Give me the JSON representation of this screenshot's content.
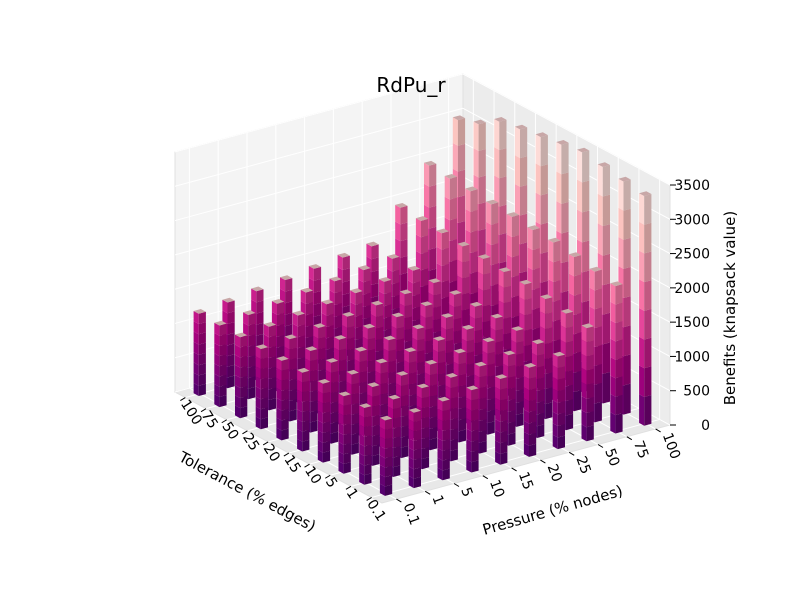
{
  "chart_data": {
    "type": "bar3d",
    "title": "RdPu_r",
    "xlabel": "Tolerance (% edges)",
    "ylabel": "Pressure (% nodes)",
    "zlabel": "Benefits (knapsack value)",
    "tolerance_levels": [
      "0.1",
      "1",
      "5",
      "10",
      "15",
      "20",
      "25",
      "50",
      "75",
      "100"
    ],
    "pressure_levels": [
      "0.1",
      "1",
      "5",
      "10",
      "15",
      "20",
      "25",
      "50",
      "75",
      "100"
    ],
    "z_ticks": [
      "0",
      "500",
      "1000",
      "1500",
      "2000",
      "2500",
      "3000",
      "3500"
    ],
    "zlim": [
      0,
      3500
    ],
    "colormap": "RdPu_r",
    "colormap_stops": [
      "#49006a",
      "#7a0177",
      "#ae017e",
      "#dd3497",
      "#f768a1",
      "#fa9fb5",
      "#fcc5c0",
      "#fde0dd"
    ],
    "benefits": [
      [
        1100,
        1100,
        1150,
        1200,
        1250,
        1300,
        1350,
        1650,
        2150,
        3350
      ],
      [
        1120,
        1130,
        1180,
        1220,
        1270,
        1320,
        1370,
        1700,
        2200,
        3400
      ],
      [
        1130,
        1150,
        1200,
        1250,
        1300,
        1350,
        1400,
        1750,
        2250,
        3450
      ],
      [
        1150,
        1170,
        1220,
        1270,
        1320,
        1370,
        1420,
        1800,
        2300,
        3500
      ],
      [
        1150,
        1180,
        1230,
        1280,
        1330,
        1380,
        1430,
        1820,
        2320,
        3450
      ],
      [
        1160,
        1190,
        1240,
        1290,
        1340,
        1390,
        1440,
        1850,
        2350,
        3400
      ],
      [
        1170,
        1200,
        1250,
        1300,
        1350,
        1400,
        1450,
        1870,
        2370,
        3350
      ],
      [
        1180,
        1220,
        1270,
        1320,
        1370,
        1420,
        1470,
        1900,
        2400,
        3300
      ],
      [
        1190,
        1230,
        1280,
        1330,
        1380,
        1430,
        1480,
        1920,
        2420,
        3100
      ],
      [
        1200,
        1250,
        1300,
        1350,
        1400,
        1450,
        1500,
        1950,
        2450,
        3000
      ]
    ]
  }
}
